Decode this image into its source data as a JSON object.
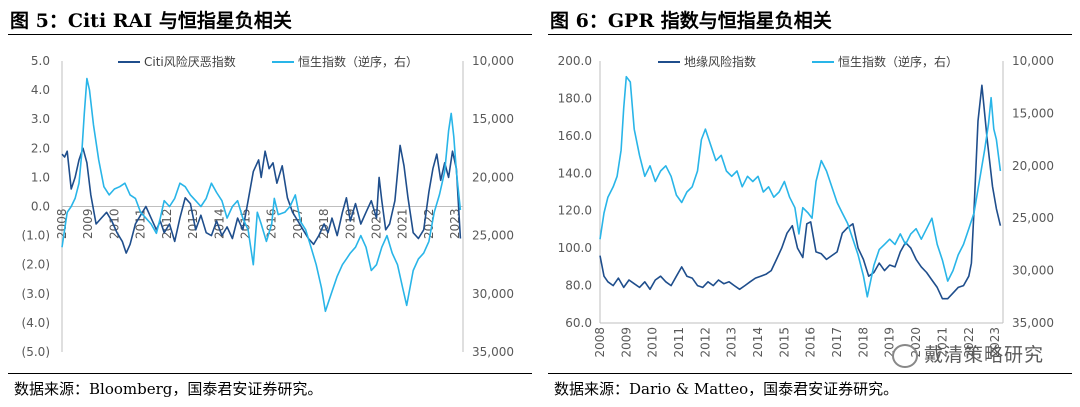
{
  "colors": {
    "dark": "#1f4e8c",
    "light": "#29b5e8",
    "axis": "#bfbfbf"
  },
  "watermark": {
    "text": "戴清策略研究",
    "icon": "wechat-icon"
  },
  "chart_data": [
    {
      "type": "line",
      "title": "图 5：Citi RAI 与恒指星负相关",
      "source": "数据来源：Bloomberg，国泰君安证券研究。",
      "legend": [
        "Citi风险厌恶指数",
        "恒生指数（逆序，右）"
      ],
      "legend_placement": "top-center",
      "x_range": [
        2008.0,
        2023.3
      ],
      "x_ticks": [
        "2008",
        "2009",
        "2010",
        "2011",
        "2012",
        "2013",
        "2014",
        "2015",
        "2016",
        "2017",
        "2018",
        "2019",
        "2020",
        "2021",
        "2022",
        "2023"
      ],
      "x_tick_values": [
        2008,
        2009,
        2010,
        2011,
        2012,
        2013,
        2014,
        2015,
        2016,
        2017,
        2018,
        2019,
        2020,
        2021,
        2022,
        2023
      ],
      "x_tick_labels_inside": true,
      "ylim": [
        -5.0,
        5.0
      ],
      "y_ticks": [
        "5.0",
        "4.0",
        "3.0",
        "2.0",
        "1.0",
        "0.0",
        "(1.0)",
        "(2.0)",
        "(3.0)",
        "(4.0)",
        "(5.0)"
      ],
      "y_tick_values": [
        5,
        4,
        3,
        2,
        1,
        0,
        -1,
        -2,
        -3,
        -4,
        -5
      ],
      "y2lim": [
        10000,
        35000
      ],
      "y2_inverted": true,
      "y2_ticks": [
        "10,000",
        "15,000",
        "20,000",
        "25,000",
        "30,000",
        "35,000"
      ],
      "y2_tick_values": [
        10000,
        15000,
        20000,
        25000,
        30000,
        35000
      ],
      "series": [
        {
          "name": "Citi风险厌恶指数",
          "axis": "left",
          "color": "#1f4e8c",
          "x": [
            2008.0,
            2008.1,
            2008.2,
            2008.35,
            2008.5,
            2008.65,
            2008.8,
            2008.95,
            2009.1,
            2009.3,
            2009.5,
            2009.7,
            2009.9,
            2010.1,
            2010.3,
            2010.45,
            2010.6,
            2010.8,
            2011.0,
            2011.2,
            2011.4,
            2011.6,
            2011.75,
            2011.9,
            2012.1,
            2012.3,
            2012.5,
            2012.7,
            2012.9,
            2013.1,
            2013.3,
            2013.5,
            2013.7,
            2013.9,
            2014.1,
            2014.3,
            2014.5,
            2014.7,
            2014.9,
            2015.1,
            2015.3,
            2015.5,
            2015.6,
            2015.75,
            2015.9,
            2016.05,
            2016.2,
            2016.4,
            2016.6,
            2016.8,
            2017.0,
            2017.2,
            2017.4,
            2017.6,
            2017.8,
            2018.0,
            2018.15,
            2018.3,
            2018.5,
            2018.7,
            2018.85,
            2019.0,
            2019.2,
            2019.4,
            2019.6,
            2019.8,
            2020.0,
            2020.1,
            2020.2,
            2020.35,
            2020.5,
            2020.7,
            2020.9,
            2021.05,
            2021.2,
            2021.4,
            2021.6,
            2021.8,
            2022.0,
            2022.15,
            2022.3,
            2022.45,
            2022.6,
            2022.75,
            2022.9,
            2023.05,
            2023.2
          ],
          "values": [
            1.8,
            1.7,
            1.9,
            0.6,
            1.0,
            1.6,
            2.0,
            1.5,
            0.4,
            -0.6,
            -0.4,
            -0.2,
            -0.5,
            -0.9,
            -1.2,
            -1.6,
            -1.3,
            -0.6,
            -0.3,
            0.0,
            -0.4,
            -0.8,
            -0.5,
            -0.9,
            -0.6,
            -1.2,
            -0.4,
            0.3,
            0.1,
            -0.8,
            -0.3,
            -0.9,
            -1.0,
            -0.5,
            -1.0,
            -0.7,
            -1.1,
            -0.4,
            -0.8,
            0.2,
            1.2,
            1.6,
            1.0,
            1.9,
            1.3,
            1.5,
            0.8,
            1.4,
            0.3,
            -0.2,
            -0.5,
            -0.8,
            -1.1,
            -1.3,
            -1.0,
            -0.6,
            -0.9,
            -0.4,
            -1.0,
            -0.2,
            0.3,
            -0.5,
            0.1,
            -0.6,
            -0.2,
            0.2,
            -0.4,
            1.0,
            0.2,
            -0.8,
            -0.6,
            0.2,
            2.1,
            1.4,
            0.3,
            -0.9,
            -1.1,
            -0.8,
            0.5,
            1.3,
            1.8,
            0.9,
            1.5,
            1.0,
            1.9,
            1.3,
            -1.1
          ]
        },
        {
          "name": "恒生指数（逆序，右）",
          "axis": "right",
          "color": "#29b5e8",
          "x": [
            2008.0,
            2008.1,
            2008.2,
            2008.35,
            2008.5,
            2008.65,
            2008.75,
            2008.85,
            2008.95,
            2009.05,
            2009.2,
            2009.4,
            2009.6,
            2009.8,
            2010.0,
            2010.2,
            2010.4,
            2010.6,
            2010.8,
            2011.0,
            2011.2,
            2011.4,
            2011.6,
            2011.75,
            2011.9,
            2012.1,
            2012.3,
            2012.5,
            2012.7,
            2012.9,
            2013.1,
            2013.3,
            2013.5,
            2013.7,
            2013.9,
            2014.1,
            2014.3,
            2014.5,
            2014.7,
            2014.9,
            2015.1,
            2015.3,
            2015.45,
            2015.6,
            2015.8,
            2016.0,
            2016.1,
            2016.25,
            2016.5,
            2016.7,
            2016.9,
            2017.1,
            2017.3,
            2017.5,
            2017.7,
            2017.9,
            2018.05,
            2018.3,
            2018.5,
            2018.7,
            2018.85,
            2019.0,
            2019.2,
            2019.4,
            2019.6,
            2019.8,
            2020.0,
            2020.2,
            2020.4,
            2020.6,
            2020.8,
            2021.0,
            2021.15,
            2021.4,
            2021.6,
            2021.8,
            2022.0,
            2022.2,
            2022.4,
            2022.6,
            2022.75,
            2022.85,
            2022.95,
            2023.05,
            2023.2
          ],
          "values": [
            26000,
            24500,
            23000,
            22500,
            21800,
            20500,
            18000,
            14500,
            11500,
            12500,
            15500,
            18500,
            20800,
            21500,
            21000,
            20800,
            20500,
            21500,
            21800,
            23000,
            23500,
            24000,
            24800,
            23500,
            22000,
            22500,
            21800,
            20500,
            20800,
            21500,
            22000,
            22500,
            21800,
            20500,
            21300,
            22000,
            23500,
            22500,
            22000,
            23500,
            24500,
            27500,
            23000,
            24000,
            25500,
            24000,
            21800,
            23200,
            23000,
            22500,
            21500,
            23800,
            24500,
            26000,
            27500,
            29500,
            31500,
            29800,
            28500,
            27500,
            27000,
            26500,
            26000,
            25000,
            26000,
            28000,
            27500,
            26000,
            25000,
            26500,
            27500,
            29500,
            31000,
            28000,
            27000,
            26500,
            25500,
            23000,
            21500,
            19500,
            16000,
            14500,
            16500,
            19500,
            22800
          ]
        }
      ]
    },
    {
      "type": "line",
      "title": "图 6：GPR 指数与恒指星负相关",
      "source": "数据来源：Dario & Matteo，国泰君安证券研究。",
      "legend": [
        "地缘风险指数",
        "恒生指数（逆序，右）"
      ],
      "legend_placement": "top-center",
      "x_range": [
        2008.0,
        2023.3
      ],
      "x_ticks": [
        "2008",
        "2009",
        "2010",
        "2011",
        "2012",
        "2013",
        "2014",
        "2015",
        "2016",
        "2017",
        "2018",
        "2019",
        "2020",
        "2021",
        "2022",
        "2023"
      ],
      "x_tick_values": [
        2008,
        2009,
        2010,
        2011,
        2012,
        2013,
        2014,
        2015,
        2016,
        2017,
        2018,
        2019,
        2020,
        2021,
        2022,
        2023
      ],
      "x_tick_labels_inside": false,
      "ylim": [
        60,
        200
      ],
      "y_ticks": [
        "200.0",
        "180.0",
        "160.0",
        "140.0",
        "120.0",
        "100.0",
        "80.0",
        "60.0"
      ],
      "y_tick_values": [
        200,
        180,
        160,
        140,
        120,
        100,
        80,
        60
      ],
      "y2lim": [
        10000,
        35000
      ],
      "y2_inverted": true,
      "y2_ticks": [
        "10,000",
        "15,000",
        "20,000",
        "25,000",
        "30,000",
        "35,000"
      ],
      "y2_tick_values": [
        10000,
        15000,
        20000,
        25000,
        30000,
        35000
      ],
      "series": [
        {
          "name": "地缘风险指数",
          "axis": "left",
          "color": "#1f4e8c",
          "x": [
            2008.0,
            2008.15,
            2008.3,
            2008.5,
            2008.7,
            2008.9,
            2009.1,
            2009.3,
            2009.5,
            2009.7,
            2009.9,
            2010.1,
            2010.3,
            2010.5,
            2010.7,
            2010.9,
            2011.1,
            2011.3,
            2011.5,
            2011.7,
            2011.9,
            2012.1,
            2012.3,
            2012.5,
            2012.7,
            2012.9,
            2013.1,
            2013.3,
            2013.5,
            2013.7,
            2013.9,
            2014.1,
            2014.3,
            2014.5,
            2014.7,
            2014.9,
            2015.1,
            2015.3,
            2015.5,
            2015.7,
            2015.85,
            2016.0,
            2016.2,
            2016.4,
            2016.6,
            2016.8,
            2017.0,
            2017.2,
            2017.4,
            2017.6,
            2017.8,
            2018.0,
            2018.2,
            2018.4,
            2018.6,
            2018.8,
            2019.0,
            2019.2,
            2019.4,
            2019.6,
            2019.8,
            2020.0,
            2020.2,
            2020.4,
            2020.6,
            2020.8,
            2021.0,
            2021.2,
            2021.4,
            2021.6,
            2021.8,
            2022.0,
            2022.1,
            2022.2,
            2022.35,
            2022.5,
            2022.7,
            2022.9,
            2023.05,
            2023.2
          ],
          "values": [
            96,
            85,
            82,
            80,
            84,
            79,
            83,
            81,
            79,
            82,
            78,
            83,
            85,
            82,
            80,
            85,
            90,
            85,
            84,
            80,
            79,
            82,
            80,
            83,
            81,
            82,
            80,
            78,
            80,
            82,
            84,
            85,
            86,
            88,
            94,
            100,
            108,
            112,
            100,
            95,
            113,
            114,
            98,
            97,
            94,
            96,
            98,
            108,
            111,
            113,
            100,
            94,
            85,
            87,
            92,
            88,
            91,
            90,
            98,
            103,
            100,
            94,
            90,
            87,
            83,
            79,
            73,
            73,
            76,
            79,
            80,
            85,
            92,
            120,
            168,
            187,
            158,
            133,
            121,
            112
          ]
        },
        {
          "name": "恒生指数（逆序，右）",
          "axis": "right",
          "color": "#29b5e8",
          "x": [
            2008.0,
            2008.15,
            2008.3,
            2008.5,
            2008.65,
            2008.8,
            2008.9,
            2009.0,
            2009.15,
            2009.3,
            2009.5,
            2009.7,
            2009.9,
            2010.1,
            2010.3,
            2010.5,
            2010.7,
            2010.9,
            2011.1,
            2011.3,
            2011.5,
            2011.7,
            2011.85,
            2012.0,
            2012.2,
            2012.4,
            2012.6,
            2012.8,
            2013.0,
            2013.2,
            2013.4,
            2013.6,
            2013.8,
            2014.0,
            2014.2,
            2014.4,
            2014.6,
            2014.8,
            2015.0,
            2015.2,
            2015.4,
            2015.55,
            2015.7,
            2015.9,
            2016.05,
            2016.2,
            2016.4,
            2016.6,
            2016.8,
            2017.0,
            2017.2,
            2017.4,
            2017.6,
            2017.8,
            2018.0,
            2018.15,
            2018.4,
            2018.6,
            2018.8,
            2019.0,
            2019.2,
            2019.4,
            2019.6,
            2019.8,
            2020.0,
            2020.2,
            2020.4,
            2020.6,
            2020.8,
            2021.0,
            2021.2,
            2021.4,
            2021.6,
            2021.8,
            2022.0,
            2022.2,
            2022.4,
            2022.6,
            2022.75,
            2022.85,
            2022.95,
            2023.05,
            2023.2
          ],
          "values": [
            27000,
            24500,
            23000,
            22000,
            21000,
            18500,
            14500,
            11500,
            12000,
            16500,
            19000,
            21000,
            20000,
            21500,
            20500,
            20000,
            21000,
            22800,
            23500,
            22500,
            22000,
            20500,
            17500,
            16500,
            18000,
            19500,
            19000,
            20500,
            21000,
            20500,
            22000,
            21000,
            21500,
            21000,
            22500,
            22000,
            23000,
            22500,
            21500,
            23000,
            24000,
            26500,
            24000,
            24500,
            25000,
            21500,
            19500,
            20500,
            22000,
            23500,
            24500,
            25500,
            27000,
            28500,
            30500,
            32500,
            29500,
            28000,
            27500,
            27000,
            27500,
            26500,
            27500,
            26500,
            26000,
            27000,
            26000,
            25000,
            27500,
            29000,
            31000,
            30000,
            28500,
            27500,
            26000,
            24500,
            21500,
            18500,
            16000,
            13500,
            16500,
            17500,
            20500
          ]
        }
      ]
    }
  ]
}
